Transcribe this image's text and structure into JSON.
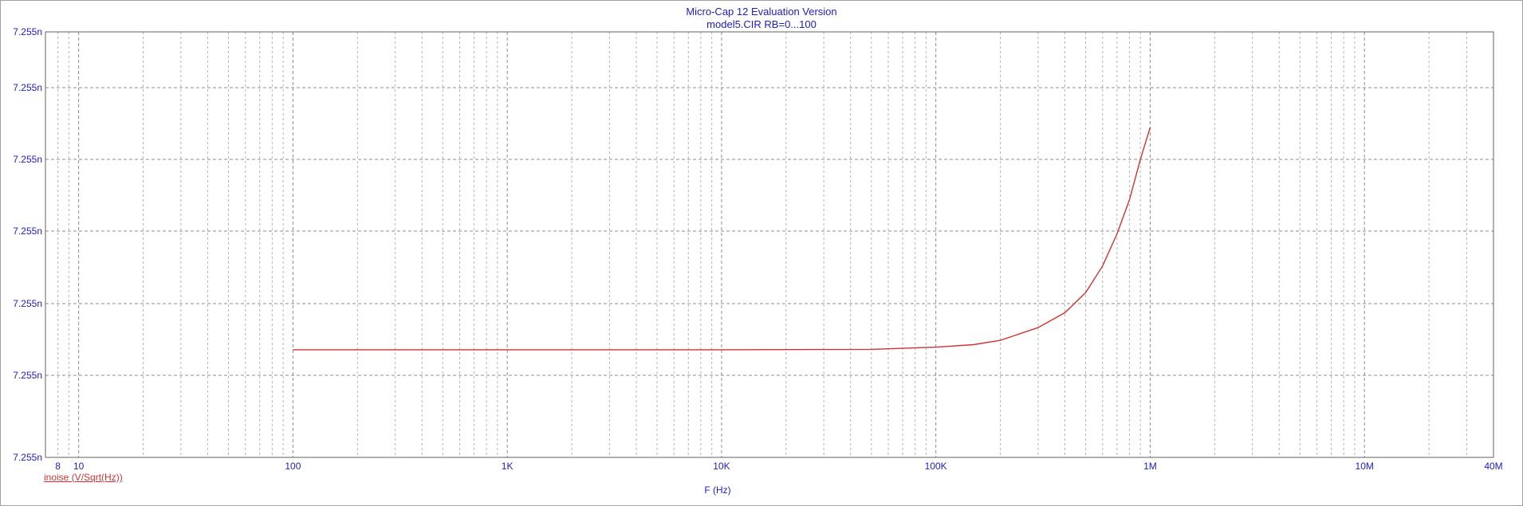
{
  "title": "Micro-Cap 12 Evaluation Version",
  "subtitle": "model5.CIR RB=0...100",
  "colors": {
    "text": "#1c1cc8",
    "trace": "#d23232",
    "grid_major": "#8c8c8c",
    "grid_minor": "#b4b4b4"
  },
  "chart_data": {
    "type": "line",
    "title": "Micro-Cap 12 Evaluation Version",
    "subtitle": "model5.CIR RB=0...100",
    "xlabel": "F (Hz)",
    "x_scale": "log",
    "xlim": [
      7,
      40000000
    ],
    "x_tick_values": [
      8,
      10,
      100,
      1000,
      10000,
      100000,
      1000000,
      10000000,
      40000000
    ],
    "x_tick_labels": [
      "8",
      "10",
      "100",
      "1K",
      "10K",
      "100K",
      "1M",
      "10M",
      "40M"
    ],
    "y_tick_labels": [
      "7.255n",
      "7.255n",
      "7.255n",
      "7.255n",
      "7.255n",
      "7.255n",
      "7.255n"
    ],
    "ylim": [
      0,
      1
    ],
    "grid": true,
    "series": [
      {
        "name": "inoise (V/Sqrt(Hz))",
        "color": "#d23232",
        "x": [
          100,
          1000,
          10000,
          50000,
          100000,
          150000,
          200000,
          300000,
          400000,
          500000,
          600000,
          700000,
          800000,
          900000,
          1000000
        ],
        "y": [
          0.253,
          0.253,
          0.253,
          0.254,
          0.259,
          0.265,
          0.275,
          0.305,
          0.34,
          0.387,
          0.45,
          0.525,
          0.605,
          0.7,
          0.775
        ]
      }
    ]
  }
}
